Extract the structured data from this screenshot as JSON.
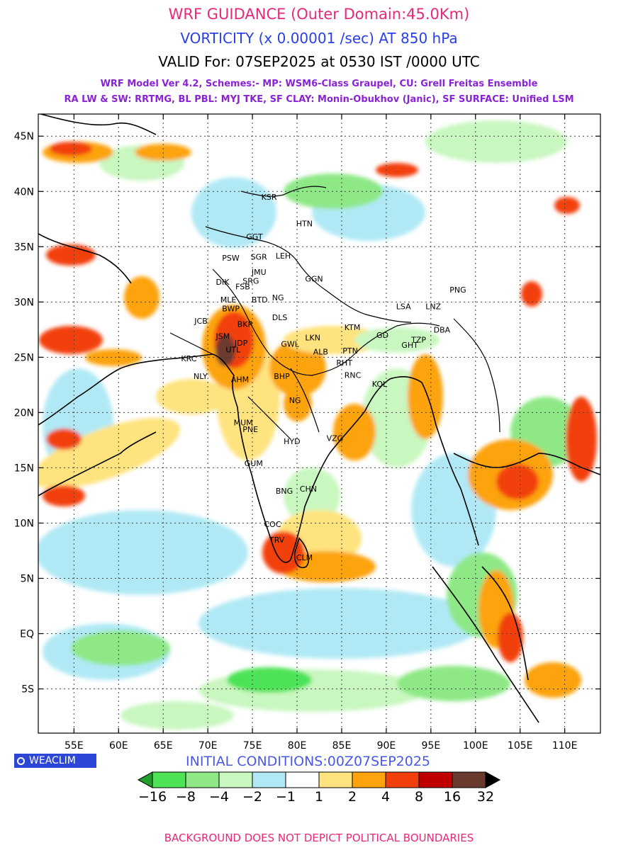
{
  "title": {
    "line1": "WRF GUIDANCE (Outer Domain:45.0Km)",
    "line2": "VORTICITY (x 0.00001 /sec) AT 850 hPa",
    "line3": "VALID For: 07SEP2025 at 0530 IST /0000 UTC",
    "line4": "WRF Model Ver 4.2, Schemes:- MP: WSM6-Class Graupel, CU: Grell Freitas Ensemble",
    "line5": "RA LW & SW: RRTMG, BL PBL: MYJ TKE, SF CLAY: Monin-Obukhov (Janic), SF SURFACE: Unified LSM"
  },
  "map": {
    "lon_range": [
      51,
      114
    ],
    "lat_range": [
      -9,
      47
    ],
    "lat_ticks": [
      "45N",
      "40N",
      "35N",
      "30N",
      "25N",
      "20N",
      "15N",
      "10N",
      "5N",
      "EQ",
      "5S"
    ],
    "lat_values": [
      45,
      40,
      35,
      30,
      25,
      20,
      15,
      10,
      5,
      0,
      -5
    ],
    "lon_ticks": [
      "55E",
      "60E",
      "65E",
      "70E",
      "75E",
      "80E",
      "85E",
      "90E",
      "95E",
      "100E",
      "105E",
      "110E"
    ],
    "lon_values": [
      55,
      60,
      65,
      70,
      75,
      80,
      85,
      90,
      95,
      100,
      105,
      110
    ],
    "stations": [
      {
        "code": "KSR",
        "lon": 76.0,
        "lat": 39.5
      },
      {
        "code": "HTN",
        "lon": 79.9,
        "lat": 37.1
      },
      {
        "code": "GGT",
        "lon": 74.3,
        "lat": 35.9
      },
      {
        "code": "PSW",
        "lon": 71.6,
        "lat": 34.0
      },
      {
        "code": "SGR",
        "lon": 74.8,
        "lat": 34.1
      },
      {
        "code": "LEH",
        "lon": 77.6,
        "lat": 34.2
      },
      {
        "code": "JMU",
        "lon": 74.9,
        "lat": 32.7
      },
      {
        "code": "DIK",
        "lon": 70.9,
        "lat": 31.8
      },
      {
        "code": "SRG",
        "lon": 73.9,
        "lat": 31.9
      },
      {
        "code": "GGN",
        "lon": 80.9,
        "lat": 32.1
      },
      {
        "code": "FSB",
        "lon": 73.1,
        "lat": 31.4
      },
      {
        "code": "MLE",
        "lon": 71.4,
        "lat": 30.2
      },
      {
        "code": "BTD",
        "lon": 74.9,
        "lat": 30.2
      },
      {
        "code": "NG",
        "lon": 77.2,
        "lat": 30.4
      },
      {
        "code": "BWP",
        "lon": 71.6,
        "lat": 29.4
      },
      {
        "code": "DLS",
        "lon": 77.2,
        "lat": 28.6
      },
      {
        "code": "JCB",
        "lon": 68.5,
        "lat": 28.3
      },
      {
        "code": "BKR",
        "lon": 73.3,
        "lat": 28.0
      },
      {
        "code": "LSA",
        "lon": 91.1,
        "lat": 29.6
      },
      {
        "code": "LNZ",
        "lon": 94.4,
        "lat": 29.6
      },
      {
        "code": "PNG",
        "lon": 97.1,
        "lat": 31.1
      },
      {
        "code": "KTM",
        "lon": 85.3,
        "lat": 27.7
      },
      {
        "code": "LKN",
        "lon": 80.9,
        "lat": 26.8
      },
      {
        "code": "JSM",
        "lon": 70.9,
        "lat": 26.9
      },
      {
        "code": "JDP",
        "lon": 73.0,
        "lat": 26.3
      },
      {
        "code": "GWL",
        "lon": 78.2,
        "lat": 26.2
      },
      {
        "code": "GD",
        "lon": 88.9,
        "lat": 27.0
      },
      {
        "code": "TZP",
        "lon": 92.8,
        "lat": 26.6
      },
      {
        "code": "DBA",
        "lon": 95.3,
        "lat": 27.5
      },
      {
        "code": "GHT",
        "lon": 91.7,
        "lat": 26.1
      },
      {
        "code": "UTL",
        "lon": 72.0,
        "lat": 25.7
      },
      {
        "code": "ALB",
        "lon": 81.8,
        "lat": 25.5
      },
      {
        "code": "PTN",
        "lon": 85.1,
        "lat": 25.6
      },
      {
        "code": "RHT",
        "lon": 84.4,
        "lat": 24.5
      },
      {
        "code": "KRC",
        "lon": 67.0,
        "lat": 24.9
      },
      {
        "code": "NLY",
        "lon": 68.4,
        "lat": 23.3
      },
      {
        "code": "AHM",
        "lon": 72.6,
        "lat": 23.0
      },
      {
        "code": "BHP",
        "lon": 77.4,
        "lat": 23.3
      },
      {
        "code": "RNC",
        "lon": 85.3,
        "lat": 23.4
      },
      {
        "code": "KOL",
        "lon": 88.4,
        "lat": 22.6
      },
      {
        "code": "NG",
        "lon": 79.1,
        "lat": 21.1
      },
      {
        "code": "MUM",
        "lon": 72.9,
        "lat": 19.1
      },
      {
        "code": "PNE",
        "lon": 73.9,
        "lat": 18.5
      },
      {
        "code": "HYD",
        "lon": 78.5,
        "lat": 17.4
      },
      {
        "code": "VZG",
        "lon": 83.3,
        "lat": 17.7
      },
      {
        "code": "GUM",
        "lon": 74.1,
        "lat": 15.4
      },
      {
        "code": "CHN",
        "lon": 80.3,
        "lat": 13.1
      },
      {
        "code": "BNG",
        "lon": 77.6,
        "lat": 12.9
      },
      {
        "code": "COC",
        "lon": 76.3,
        "lat": 9.9
      },
      {
        "code": "TRV",
        "lon": 76.9,
        "lat": 8.5
      },
      {
        "code": "CLM",
        "lon": 79.9,
        "lat": 6.9
      }
    ]
  },
  "brand": {
    "label": "WEACLIM"
  },
  "initial_conditions": "INITIAL CONDITIONS:00Z07SEP2025",
  "legend": {
    "labels": [
      "-16",
      "-8",
      "-4",
      "-2",
      "-1",
      "1",
      "2",
      "4",
      "8",
      "16",
      "32"
    ],
    "colors": [
      "#1fa12b",
      "#4ee356",
      "#8ee886",
      "#c9f7c0",
      "#b0e9f5",
      "#ffffff",
      "#ffe37e",
      "#fca30e",
      "#f2400c",
      "#c00000",
      "#6b3a2e",
      "#000000"
    ]
  },
  "footer": "BACKGROUND DOES NOT DEPICT POLITICAL BOUNDARIES"
}
